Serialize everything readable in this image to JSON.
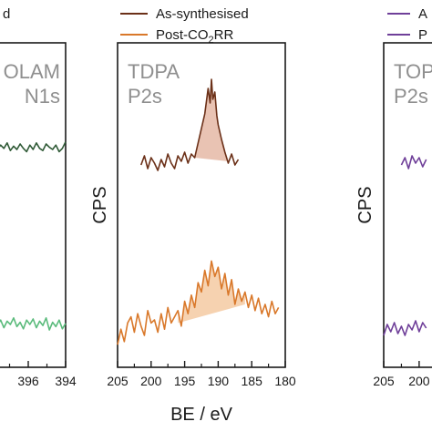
{
  "xlabel": "BE / eV",
  "ylabel": "CPS",
  "legend_left": {
    "item0": "d"
  },
  "legend_center": {
    "item0": "As-synthesised",
    "item1_pre": "Post-CO",
    "item1_sub": "2",
    "item1_post": "RR"
  },
  "legend_right": {
    "item0": "A",
    "item1": "P"
  },
  "colors": {
    "olam_as": "#2f5a36",
    "olam_post": "#5bbb7c",
    "tdpa_as": "#6b3018",
    "tdpa_post": "#d9782a",
    "tdpa_fill": "#e9c3b3",
    "tdpa_post_fill": "#f6d2b0",
    "topo_as": "#6f3f99",
    "topo_post": "#6f3f99"
  },
  "panels": [
    {
      "tag_line1": "OLAM",
      "tag_line2": "N1s",
      "ticks": [
        "8",
        "396",
        "394"
      ]
    },
    {
      "tag_line1": "TDPA",
      "tag_line2": "P2s",
      "ticks": [
        "205",
        "200",
        "195",
        "190",
        "185",
        "180"
      ]
    },
    {
      "tag_line1": "TOP",
      "tag_line2": "P2s",
      "ticks": [
        "205",
        "200"
      ]
    }
  ],
  "chart_data": [
    {
      "type": "line",
      "panel": "OLAM N1s",
      "xlim": [
        398.6,
        394
      ],
      "series": [
        {
          "name": "As-synthesised",
          "x": [
            398.6,
            398.4,
            398.2,
            398.0,
            397.8,
            397.6,
            397.4,
            397.2,
            397.0,
            396.8,
            396.6,
            396.4,
            396.2,
            396.0,
            395.8,
            395.6,
            395.4,
            395.2,
            395.0,
            394.8,
            394.6,
            394.4,
            394.2,
            394.0
          ],
          "y": [
            3.2,
            3.5,
            3.0,
            3.4,
            3.1,
            3.6,
            2.9,
            3.3,
            3.0,
            3.5,
            3.1,
            2.8,
            3.4,
            3.0,
            3.6,
            3.1,
            2.9,
            3.5,
            3.2,
            3.0,
            3.4,
            2.8,
            3.1,
            3.7
          ]
        },
        {
          "name": "Post-CO2RR",
          "x": [
            398.6,
            398.4,
            398.2,
            398.0,
            397.8,
            397.6,
            397.4,
            397.2,
            397.0,
            396.8,
            396.6,
            396.4,
            396.2,
            396.0,
            395.8,
            395.6,
            395.4,
            395.2,
            395.0,
            394.8,
            394.6,
            394.4,
            394.2,
            394.0
          ],
          "y": [
            0.6,
            1.0,
            0.4,
            0.9,
            0.2,
            0.8,
            0.5,
            1.1,
            0.3,
            0.7,
            0.1,
            0.9,
            0.5,
            1.0,
            0.2,
            0.8,
            0.4,
            1.1,
            0.0,
            0.7,
            0.3,
            0.9,
            0.1,
            0.6
          ]
        }
      ]
    },
    {
      "type": "line",
      "panel": "TDPA P2s",
      "xlim": [
        205,
        180
      ],
      "series": [
        {
          "name": "As-synthesised",
          "x": [
            201.5,
            201.0,
            200.5,
            200.0,
            199.5,
            199.0,
            198.5,
            198.0,
            197.5,
            197.0,
            196.5,
            196.0,
            195.5,
            195.0,
            194.5,
            194.0,
            193.5,
            193.0,
            192.5,
            192.0,
            191.5,
            191.2,
            191.0,
            190.8,
            190.5,
            190.2,
            190.0,
            189.5,
            189.0,
            188.5,
            188.0,
            187.5,
            187.0
          ],
          "y": [
            2.2,
            2.7,
            2.0,
            2.6,
            2.3,
            1.9,
            2.5,
            2.1,
            2.8,
            2.3,
            2.0,
            2.7,
            2.4,
            2.9,
            2.3,
            2.8,
            2.6,
            3.4,
            4.2,
            5.0,
            6.4,
            5.6,
            6.9,
            5.8,
            6.2,
            4.9,
            4.4,
            3.6,
            2.9,
            2.3,
            2.8,
            2.2,
            2.5
          ]
        },
        {
          "name": "Post-CO2RR",
          "x": [
            205.0,
            204.5,
            204.0,
            203.5,
            203.0,
            202.5,
            202.0,
            201.5,
            201.0,
            200.5,
            200.0,
            199.5,
            199.0,
            198.5,
            198.0,
            197.5,
            197.0,
            196.5,
            196.0,
            195.5,
            195.0,
            194.5,
            194.0,
            193.5,
            193.0,
            192.5,
            192.0,
            191.5,
            191.0,
            190.5,
            190.0,
            189.5,
            189.0,
            188.5,
            188.0,
            187.5,
            187.0,
            186.5,
            186.0,
            185.5,
            185.0,
            184.5,
            184.0,
            183.5,
            183.0,
            182.5,
            182.0,
            181.5,
            181.0
          ],
          "y": [
            0.2,
            0.7,
            0.3,
            0.9,
            1.1,
            0.6,
            1.2,
            0.8,
            0.5,
            1.3,
            0.9,
            1.0,
            0.6,
            1.2,
            0.7,
            1.4,
            0.9,
            1.1,
            1.3,
            0.8,
            1.6,
            1.2,
            1.8,
            1.4,
            2.2,
            1.9,
            2.6,
            2.1,
            2.9,
            2.4,
            2.7,
            2.0,
            2.5,
            1.8,
            2.3,
            1.5,
            2.0,
            1.6,
            1.9,
            1.4,
            1.8,
            1.3,
            1.7,
            1.2,
            1.5,
            1.1,
            1.6,
            1.2,
            1.4
          ]
        }
      ]
    },
    {
      "type": "line",
      "panel": "TOP P2s",
      "xlim": [
        205,
        196
      ],
      "series": [
        {
          "name": "As-synthesised",
          "x": [
            202.5,
            202.0,
            201.5,
            201.0,
            200.5,
            200.0,
            199.5,
            199.0
          ],
          "y": [
            2.2,
            2.6,
            2.0,
            2.7,
            2.3,
            2.6,
            2.1,
            2.5
          ]
        },
        {
          "name": "Post-CO2RR",
          "x": [
            205.0,
            204.5,
            204.0,
            203.5,
            203.0,
            202.5,
            202.0,
            201.5,
            201.0,
            200.5,
            200.0,
            199.5,
            199.0
          ],
          "y": [
            0.2,
            0.8,
            0.4,
            0.9,
            0.3,
            0.7,
            0.2,
            0.8,
            0.5,
            1.0,
            0.4,
            0.9,
            0.6
          ]
        }
      ]
    }
  ]
}
